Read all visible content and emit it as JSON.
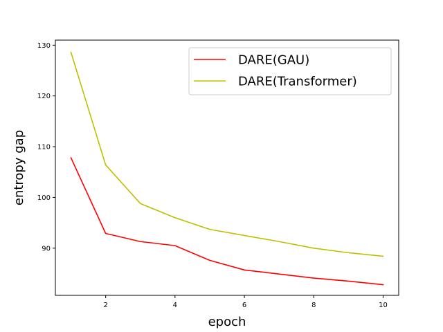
{
  "chart_data": {
    "type": "line",
    "title": "",
    "xlabel": "epoch",
    "ylabel": "entropy gap",
    "x": [
      1,
      2,
      3,
      4,
      5,
      6,
      7,
      8,
      9,
      10
    ],
    "xlim": [
      0.55,
      10.45
    ],
    "ylim": [
      80.7,
      131.0
    ],
    "xticks": [
      2,
      4,
      6,
      8,
      10
    ],
    "yticks": [
      90,
      100,
      110,
      120,
      130
    ],
    "grid": false,
    "legend_position": "top-right",
    "series": [
      {
        "name": "DARE(GAU)",
        "color": "#ff0000",
        "values": [
          107.8,
          92.9,
          91.3,
          90.5,
          87.6,
          85.7,
          84.9,
          84.1,
          83.5,
          82.8
        ]
      },
      {
        "name": "DARE(Transformer)",
        "color": "#bfbf00",
        "values": [
          128.6,
          106.4,
          98.8,
          96.0,
          93.7,
          92.5,
          91.3,
          90.0,
          89.1,
          88.4
        ]
      }
    ]
  }
}
